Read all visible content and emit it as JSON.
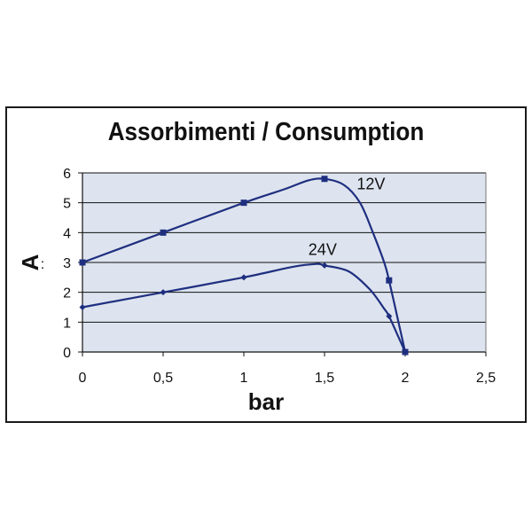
{
  "chart_data": {
    "type": "line",
    "title": "Assorbimenti / Consumption",
    "xlabel": "bar",
    "ylabel": "A",
    "xlim": [
      0,
      2.5
    ],
    "ylim": [
      0,
      6
    ],
    "xticks": [
      0,
      0.5,
      1,
      1.5,
      2,
      2.5
    ],
    "xtick_labels": [
      "0",
      "0,5",
      "1",
      "1,5",
      "2",
      "2,5"
    ],
    "yticks": [
      0,
      1,
      2,
      3,
      4,
      5,
      6
    ],
    "ytick_labels": [
      "0",
      "1",
      "2",
      "3",
      "4",
      "5",
      "6"
    ],
    "grid": "horizontal",
    "plot_background": "#dde4ef",
    "series": [
      {
        "name": "12V",
        "color": "#1f2f80",
        "marker": "square",
        "points": [
          [
            0,
            3
          ],
          [
            0.5,
            4
          ],
          [
            1,
            5
          ],
          [
            1.5,
            5.8
          ],
          [
            1.9,
            2.4
          ],
          [
            2,
            0
          ]
        ],
        "curve": [
          [
            0,
            3
          ],
          [
            0.5,
            4
          ],
          [
            1,
            5
          ],
          [
            1.25,
            5.45
          ],
          [
            1.4,
            5.75
          ],
          [
            1.5,
            5.8
          ],
          [
            1.62,
            5.6
          ],
          [
            1.72,
            5.0
          ],
          [
            1.8,
            4.0
          ],
          [
            1.87,
            3.0
          ],
          [
            1.9,
            2.4
          ],
          [
            1.95,
            1.2
          ],
          [
            2,
            0
          ]
        ]
      },
      {
        "name": "24V",
        "color": "#1f2f80",
        "marker": "diamond",
        "points": [
          [
            0,
            1.5
          ],
          [
            0.5,
            2
          ],
          [
            1,
            2.5
          ],
          [
            1.5,
            2.9
          ],
          [
            1.9,
            1.2
          ],
          [
            2,
            0
          ]
        ],
        "curve": [
          [
            0,
            1.5
          ],
          [
            0.5,
            2
          ],
          [
            1,
            2.5
          ],
          [
            1.3,
            2.85
          ],
          [
            1.45,
            2.95
          ],
          [
            1.5,
            2.9
          ],
          [
            1.65,
            2.7
          ],
          [
            1.78,
            2.1
          ],
          [
            1.87,
            1.45
          ],
          [
            1.9,
            1.2
          ],
          [
            1.95,
            0.6
          ],
          [
            2,
            0
          ]
        ]
      }
    ],
    "annotations": [
      {
        "text": "12V",
        "x": 1.7,
        "y": 5.45
      },
      {
        "text": "24V",
        "x": 1.4,
        "y": 3.25
      }
    ]
  }
}
